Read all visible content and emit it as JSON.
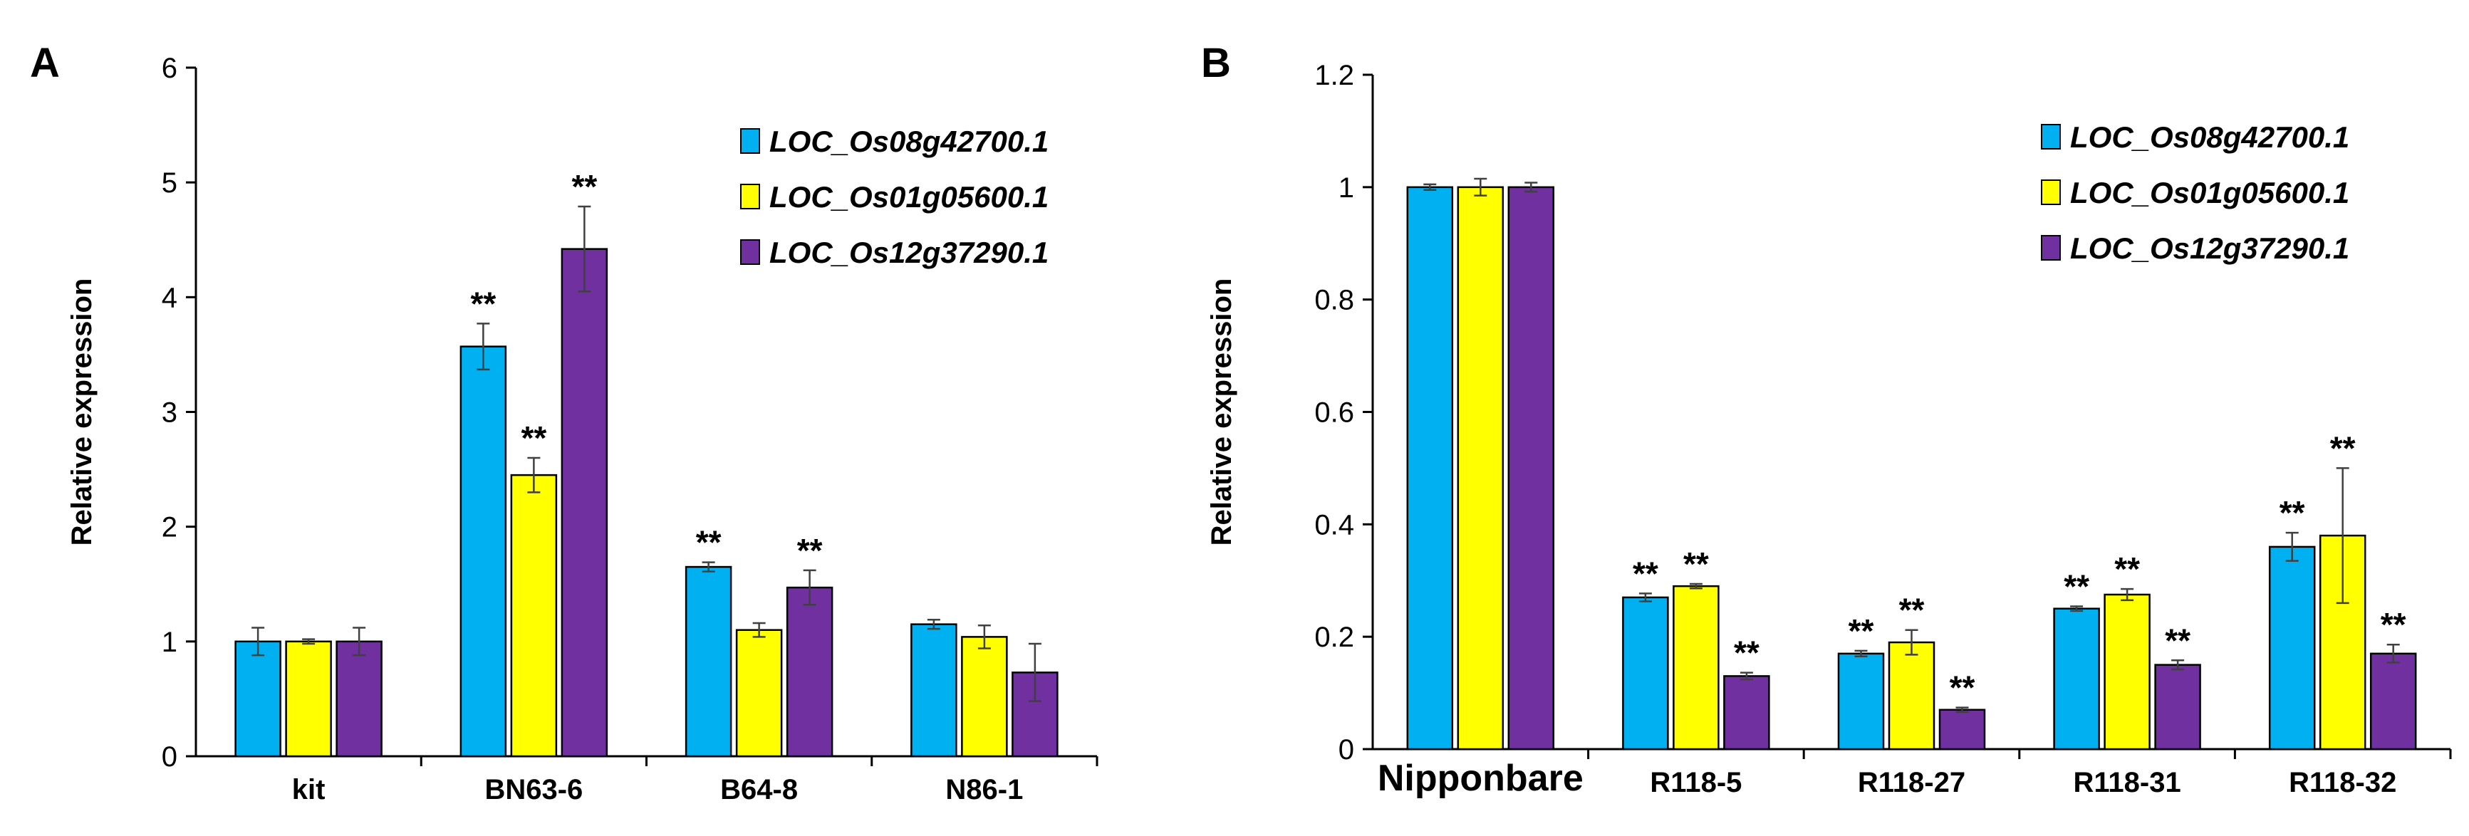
{
  "colors": {
    "LOC_Os08g42700.1": "#00B0F0",
    "LOC_Os01g05600.1": "#FFFF00",
    "LOC_Os12g37290.1": "#7030A0",
    "axis": "#000000",
    "error_bar": "#404040"
  },
  "chart_data": [
    {
      "panel": "A",
      "type": "bar",
      "ylabel": "Relative expression",
      "ylim": [
        0,
        6
      ],
      "yticks": [
        "0",
        "1",
        "2",
        "3",
        "4",
        "5",
        "6"
      ],
      "categories": [
        "kit",
        "BN63-6",
        "B64-8",
        "N86-1"
      ],
      "legend_position": "top-right",
      "series": [
        {
          "name": "LOC_Os08g42700.1",
          "values": [
            1.0,
            3.57,
            1.65,
            1.15
          ],
          "errors": [
            0.12,
            0.2,
            0.04,
            0.04
          ],
          "sig": [
            "",
            "**",
            "**",
            ""
          ]
        },
        {
          "name": "LOC_Os01g05600.1",
          "values": [
            1.0,
            2.45,
            1.1,
            1.04
          ],
          "errors": [
            0.02,
            0.15,
            0.06,
            0.1
          ],
          "sig": [
            "",
            "**",
            "",
            ""
          ]
        },
        {
          "name": "LOC_Os12g37290.1",
          "values": [
            1.0,
            4.42,
            1.47,
            0.73
          ],
          "errors": [
            0.12,
            0.37,
            0.15,
            0.25
          ],
          "sig": [
            "",
            "**",
            "**",
            ""
          ]
        }
      ]
    },
    {
      "panel": "B",
      "type": "bar",
      "ylabel": "Relative expression",
      "ylim": [
        0,
        1.2
      ],
      "yticks": [
        "0",
        "0.2",
        "0.4",
        "0.6",
        "0.8",
        "1",
        "1.2"
      ],
      "categories": [
        "Nipponbare",
        "R118-5",
        "R118-27",
        "R118-31",
        "R118-32"
      ],
      "legend_position": "top-right",
      "series": [
        {
          "name": "LOC_Os08g42700.1",
          "values": [
            1.0,
            0.27,
            0.17,
            0.25,
            0.36
          ],
          "errors": [
            0.005,
            0.007,
            0.005,
            0.004,
            0.025
          ],
          "sig": [
            "",
            "**",
            "**",
            "**",
            "**"
          ]
        },
        {
          "name": "LOC_Os01g05600.1",
          "values": [
            1.0,
            0.29,
            0.19,
            0.275,
            0.38
          ],
          "errors": [
            0.015,
            0.004,
            0.022,
            0.01,
            0.12
          ],
          "sig": [
            "",
            "**",
            "**",
            "**",
            "**"
          ]
        },
        {
          "name": "LOC_Os12g37290.1",
          "values": [
            1.0,
            0.13,
            0.07,
            0.15,
            0.17
          ],
          "errors": [
            0.008,
            0.006,
            0.004,
            0.008,
            0.016
          ],
          "sig": [
            "",
            "**",
            "**",
            "**",
            "**"
          ]
        }
      ]
    }
  ]
}
